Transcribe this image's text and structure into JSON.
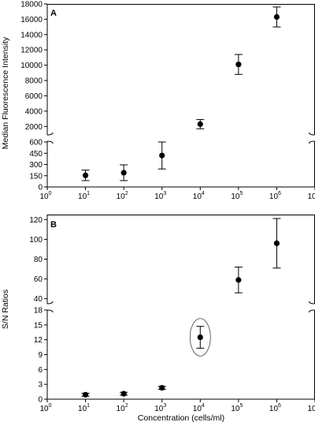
{
  "chart_data": [
    {
      "type": "scatter",
      "panel_label": "A",
      "ylabel": "Median Fluorescence Intensity",
      "xlabel": "",
      "x_scale": "log",
      "xlim": [
        1,
        10000000
      ],
      "x_ticks": [
        {
          "base": "10",
          "exp": "0"
        },
        {
          "base": "10",
          "exp": "1"
        },
        {
          "base": "10",
          "exp": "2"
        },
        {
          "base": "10",
          "exp": "3"
        },
        {
          "base": "10",
          "exp": "4"
        },
        {
          "base": "10",
          "exp": "5"
        },
        {
          "base": "10",
          "exp": "6"
        },
        {
          "base": "10",
          "exp": "7"
        }
      ],
      "y_axis_break": true,
      "y_lower_range": [
        0,
        600
      ],
      "y_upper_range": [
        1000,
        18000
      ],
      "y_lower_ticks": [
        "0",
        "150",
        "300",
        "450",
        "600"
      ],
      "y_upper_ticks": [
        "2000",
        "4000",
        "6000",
        "8000",
        "10000",
        "12000",
        "14000",
        "16000",
        "18000"
      ],
      "grid": false,
      "points": [
        {
          "x": 10,
          "y": 155,
          "err": 70
        },
        {
          "x": 100,
          "y": 190,
          "err": 105
        },
        {
          "x": 1000,
          "y": 420,
          "err": 180
        },
        {
          "x": 10000,
          "y": 2300,
          "err": 600
        },
        {
          "x": 100000,
          "y": 10100,
          "err": 1300
        },
        {
          "x": 1000000,
          "y": 16300,
          "err": 1300
        }
      ]
    },
    {
      "type": "scatter",
      "panel_label": "B",
      "ylabel": "S/N Ratios",
      "xlabel": "Concentration (cells/ml)",
      "x_scale": "log",
      "xlim": [
        1,
        10000000
      ],
      "x_ticks": [
        {
          "base": "10",
          "exp": "0"
        },
        {
          "base": "10",
          "exp": "1"
        },
        {
          "base": "10",
          "exp": "2"
        },
        {
          "base": "10",
          "exp": "3"
        },
        {
          "base": "10",
          "exp": "4"
        },
        {
          "base": "10",
          "exp": "5"
        },
        {
          "base": "10",
          "exp": "6"
        },
        {
          "base": "10",
          "exp": "7"
        }
      ],
      "y_axis_break": true,
      "y_lower_range": [
        0,
        18
      ],
      "y_upper_range": [
        35,
        125
      ],
      "y_lower_ticks": [
        "0",
        "3",
        "6",
        "9",
        "12",
        "15",
        "18"
      ],
      "y_upper_ticks": [
        "40",
        "60",
        "80",
        "100",
        "120"
      ],
      "grid": false,
      "highlighted_point_x": 10000,
      "points": [
        {
          "x": 10,
          "y": 0.9,
          "err": 0.3
        },
        {
          "x": 100,
          "y": 1.1,
          "err": 0.3
        },
        {
          "x": 1000,
          "y": 2.3,
          "err": 0.3
        },
        {
          "x": 10000,
          "y": 12.5,
          "err": 2.2
        },
        {
          "x": 100000,
          "y": 59,
          "err": 13
        },
        {
          "x": 1000000,
          "y": 96,
          "err": 25
        }
      ]
    }
  ]
}
